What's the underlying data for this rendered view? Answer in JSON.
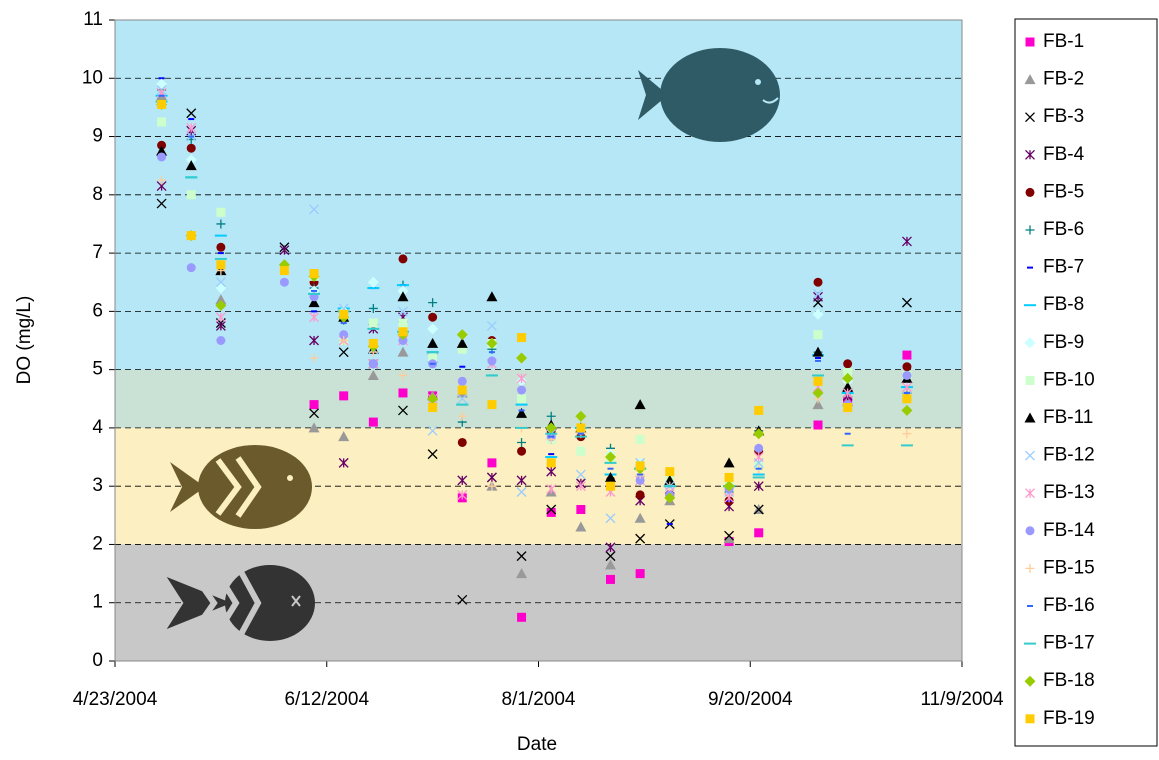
{
  "chart_data": {
    "type": "scatter",
    "x_label": "Date",
    "y_label": "DO (mg/L)",
    "x": [
      "5/4/2004",
      "5/11/2004",
      "5/18/2004",
      "6/2/2004",
      "6/9/2004",
      "6/16/2004",
      "6/23/2004",
      "6/30/2004",
      "7/7/2004",
      "7/14/2004",
      "7/21/2004",
      "7/28/2004",
      "8/4/2004",
      "8/11/2004",
      "8/18/2004",
      "8/25/2004",
      "9/1/2004",
      "9/15/2004",
      "9/22/2004",
      "10/6/2004",
      "10/13/2004",
      "10/27/2004"
    ],
    "xlim": [
      "4/23/2004",
      "11/9/2004"
    ],
    "xticks": [
      "4/23/2004",
      "6/12/2004",
      "8/1/2004",
      "9/20/2004",
      "11/9/2004"
    ],
    "ylim": [
      0,
      11
    ],
    "yticks": [
      0,
      1,
      2,
      3,
      4,
      5,
      6,
      7,
      8,
      9,
      10,
      11
    ],
    "grid": true,
    "bands": [
      {
        "from": 0,
        "to": 2,
        "color": "#c8c8c8"
      },
      {
        "from": 2,
        "to": 4,
        "color": "#fcefc2"
      },
      {
        "from": 4,
        "to": 5,
        "color": "#c9e2d5"
      },
      {
        "from": 5,
        "to": 11,
        "color": "#b6e7f6"
      }
    ],
    "legend": "right",
    "series": [
      {
        "name": "FB-1",
        "color": "#ff00cc",
        "marker": "square",
        "values": [
          null,
          null,
          null,
          null,
          4.4,
          4.55,
          4.1,
          4.6,
          4.55,
          2.8,
          3.4,
          0.75,
          2.55,
          2.6,
          1.4,
          1.5,
          null,
          2.05,
          2.2,
          4.05,
          4.45,
          5.25
        ]
      },
      {
        "name": "FB-2",
        "color": "#999999",
        "marker": "triangle",
        "values": [
          9.7,
          null,
          6.2,
          null,
          4.0,
          3.85,
          4.9,
          5.3,
          4.55,
          4.6,
          3.0,
          1.5,
          2.9,
          2.3,
          1.65,
          2.45,
          2.75,
          2.1,
          2.6,
          4.4,
          4.45,
          4.85
        ]
      },
      {
        "name": "FB-3",
        "color": "#000000",
        "marker": "x",
        "values": [
          7.85,
          9.4,
          5.8,
          7.1,
          4.25,
          5.3,
          5.1,
          4.3,
          3.55,
          1.05,
          3.15,
          1.8,
          2.6,
          3.05,
          1.8,
          2.1,
          2.35,
          2.15,
          2.6,
          6.15,
          4.6,
          6.15
        ]
      },
      {
        "name": "FB-4",
        "color": "#660066",
        "marker": "star",
        "values": [
          8.15,
          9.1,
          5.75,
          7.05,
          5.5,
          3.4,
          5.7,
          5.9,
          5.2,
          3.1,
          3.15,
          3.1,
          3.25,
          3.05,
          1.95,
          2.75,
          2.95,
          2.65,
          3.0,
          6.25,
          4.55,
          7.2
        ]
      },
      {
        "name": "FB-5",
        "color": "#800000",
        "marker": "circle",
        "values": [
          8.85,
          8.8,
          7.1,
          null,
          6.5,
          5.9,
          5.1,
          6.9,
          5.9,
          3.75,
          5.5,
          3.6,
          3.95,
          3.85,
          3.1,
          2.85,
          2.85,
          2.75,
          3.6,
          6.5,
          5.1,
          5.05
        ]
      },
      {
        "name": "FB-6",
        "color": "#008080",
        "marker": "plus",
        "values": [
          9.8,
          8.95,
          7.5,
          null,
          6.4,
          5.85,
          6.05,
          6.45,
          6.15,
          4.1,
          5.35,
          3.75,
          4.2,
          4.0,
          3.65,
          3.3,
          3.0,
          2.9,
          3.95,
          5.3,
          4.9,
          4.6
        ]
      },
      {
        "name": "FB-7",
        "color": "#0000ff",
        "marker": "dash",
        "values": [
          10.0,
          9.3,
          7.0,
          null,
          6.0,
          5.9,
          6.4,
          6.45,
          5.2,
          5.05,
          4.9,
          4.2,
          3.55,
          4.0,
          3.1,
          3.2,
          2.35,
          2.75,
          3.2,
          5.2,
          4.6,
          4.6
        ]
      },
      {
        "name": "FB-8",
        "color": "#00ccff",
        "marker": "longdash",
        "values": [
          9.7,
          8.3,
          7.3,
          null,
          6.3,
          6.05,
          6.4,
          6.45,
          5.3,
          4.4,
          4.9,
          4.4,
          3.5,
          4.0,
          3.2,
          3.3,
          3.0,
          3.0,
          3.2,
          5.25,
          4.6,
          4.7
        ]
      },
      {
        "name": "FB-9",
        "color": "#ccffff",
        "marker": "diamond",
        "values": [
          9.9,
          8.6,
          6.4,
          null,
          6.35,
          6.0,
          6.5,
          6.35,
          5.7,
          5.4,
          5.45,
          4.8,
          3.8,
          3.6,
          3.55,
          3.4,
          3.0,
          3.0,
          3.4,
          5.95,
          4.8,
          4.8
        ]
      },
      {
        "name": "FB-10",
        "color": "#ccffcc",
        "marker": "square",
        "values": [
          9.25,
          8.0,
          7.7,
          6.7,
          6.6,
          5.5,
          5.8,
          5.8,
          5.2,
          5.35,
          5.45,
          4.5,
          3.8,
          3.6,
          3.5,
          3.8,
          3.1,
          3.0,
          3.35,
          5.6,
          4.95,
          4.9
        ]
      },
      {
        "name": "FB-11",
        "color": "#000000",
        "marker": "triangle",
        "values": [
          8.75,
          8.5,
          6.7,
          null,
          6.15,
          5.9,
          5.35,
          6.25,
          5.45,
          5.45,
          6.25,
          4.25,
          4.05,
          4.0,
          3.15,
          4.4,
          3.1,
          3.4,
          3.95,
          5.3,
          4.7,
          4.85
        ]
      },
      {
        "name": "FB-12",
        "color": "#99ccff",
        "marker": "x",
        "values": [
          9.8,
          9.0,
          6.5,
          null,
          7.75,
          6.05,
          5.35,
          6.0,
          3.95,
          4.5,
          5.75,
          2.9,
          3.9,
          3.2,
          2.45,
          3.4,
          3.0,
          2.9,
          3.4,
          6.3,
          4.35,
          4.55
        ]
      },
      {
        "name": "FB-13",
        "color": "#ff99cc",
        "marker": "star",
        "values": [
          9.75,
          9.15,
          5.9,
          null,
          5.9,
          5.5,
          5.1,
          5.5,
          4.5,
          2.85,
          5.1,
          4.85,
          2.95,
          3.0,
          2.9,
          3.1,
          2.9,
          2.8,
          3.5,
          4.7,
          4.6,
          4.7
        ]
      },
      {
        "name": "FB-14",
        "color": "#9999ff",
        "marker": "circle",
        "values": [
          8.65,
          6.75,
          5.5,
          6.5,
          6.25,
          5.6,
          5.1,
          5.5,
          5.1,
          4.8,
          5.15,
          4.65,
          3.85,
          3.95,
          3.0,
          3.1,
          2.85,
          2.95,
          3.65,
          4.8,
          4.4,
          4.9
        ]
      },
      {
        "name": "FB-15",
        "color": "#ffcc99",
        "marker": "plus",
        "values": [
          8.25,
          7.3,
          6.7,
          null,
          5.2,
          5.5,
          5.3,
          4.9,
          4.4,
          4.2,
          3.0,
          4.0,
          3.8,
          3.9,
          3.5,
          3.2,
          3.0,
          3.0,
          3.3,
          4.5,
          4.3,
          3.9
        ]
      },
      {
        "name": "FB-16",
        "color": "#3366ff",
        "marker": "dash",
        "values": [
          9.7,
          9.0,
          6.8,
          null,
          6.35,
          5.8,
          5.5,
          5.6,
          5.1,
          4.7,
          5.3,
          4.3,
          3.85,
          3.9,
          3.3,
          3.2,
          3.0,
          3.0,
          3.3,
          5.15,
          3.9,
          4.6
        ]
      },
      {
        "name": "FB-17",
        "color": "#33cccc",
        "marker": "longdash",
        "values": [
          9.6,
          8.3,
          6.9,
          null,
          6.3,
          6.0,
          5.7,
          5.65,
          5.3,
          4.4,
          4.9,
          4.0,
          3.9,
          3.85,
          3.4,
          3.3,
          3.0,
          3.0,
          3.15,
          4.9,
          3.7,
          3.7
        ]
      },
      {
        "name": "FB-18",
        "color": "#99cc00",
        "marker": "diamond",
        "values": [
          9.55,
          7.3,
          6.1,
          6.8,
          6.6,
          5.9,
          5.4,
          5.6,
          4.5,
          5.6,
          5.45,
          5.2,
          4.0,
          4.2,
          3.5,
          3.3,
          2.8,
          3.0,
          3.9,
          4.6,
          4.85,
          4.3
        ]
      },
      {
        "name": "FB-19",
        "color": "#ffcc00",
        "marker": "square",
        "values": [
          9.55,
          7.3,
          6.8,
          6.7,
          6.65,
          5.95,
          5.45,
          5.65,
          4.35,
          4.65,
          4.4,
          5.55,
          3.4,
          4.0,
          3.0,
          3.35,
          3.25,
          3.15,
          4.3,
          4.8,
          4.35,
          4.5
        ]
      }
    ]
  }
}
